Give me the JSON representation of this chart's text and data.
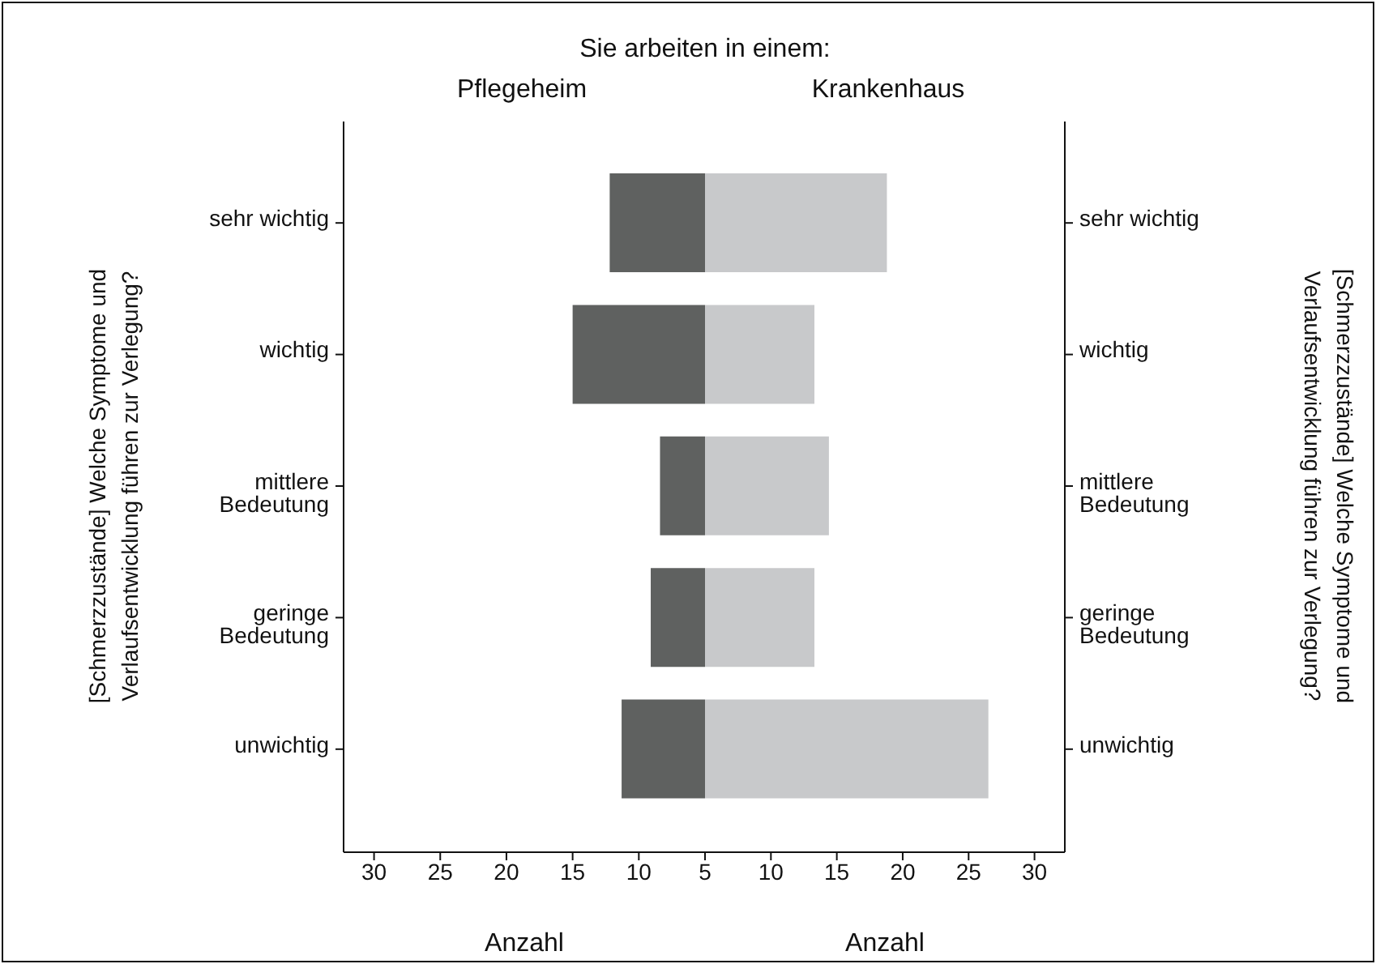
{
  "chart_data": [
    {
      "type": "bar",
      "orientation": "horizontal",
      "title": "Sie arbeiten in einem:",
      "subtitle": "Pflegeheim",
      "ylabel": "[Schmerzzustände] Welche Symptome und Verlaufsentwicklung führen zur Verlegung?",
      "xlabel": "Anzahl",
      "categories": [
        "sehr wichtig",
        "wichtig",
        "mittlere Bedeutung",
        "geringe Bedeutung",
        "unwichtig"
      ],
      "values": [
        12.2,
        15.0,
        8.4,
        9.1,
        11.3
      ],
      "color": "#5f6160",
      "xlim": [
        32.3,
        5
      ],
      "xticks": [
        30,
        25,
        20,
        15,
        10,
        5
      ],
      "grid": false,
      "legend": false
    },
    {
      "type": "bar",
      "orientation": "horizontal",
      "subtitle": "Krankenhaus",
      "y2label": "[Schmerzzustände] Welche Symptome und Verlaufsentwicklung führen zur Verlegung?",
      "xlabel": "Anzahl",
      "categories": [
        "sehr wichtig",
        "wichtig",
        "mittlere Bedeutung",
        "geringe Bedeutung",
        "unwichtig"
      ],
      "values": [
        18.8,
        13.3,
        14.4,
        13.3,
        26.5
      ],
      "color": "#c8c9cb",
      "xlim": [
        5,
        32.3
      ],
      "xticks": [
        10,
        15,
        20,
        25,
        30
      ],
      "grid": false,
      "legend": false
    }
  ]
}
